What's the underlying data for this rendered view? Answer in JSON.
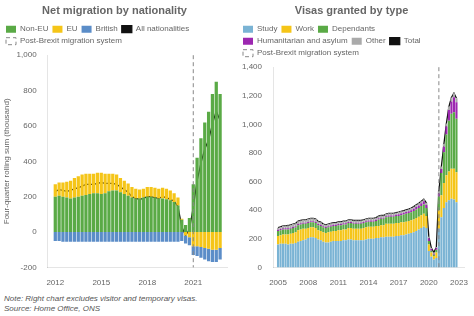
{
  "chart_data": [
    {
      "type": "bar",
      "stacked": true,
      "title": "Net migration by nationality",
      "ylabel": "Four-quarter rolling sum (thousand)",
      "x": [
        2012,
        2012.25,
        2012.5,
        2012.75,
        2013,
        2013.25,
        2013.5,
        2013.75,
        2014,
        2014.25,
        2014.5,
        2014.75,
        2015,
        2015.25,
        2015.5,
        2015.75,
        2016,
        2016.25,
        2016.5,
        2016.75,
        2017,
        2017.25,
        2017.5,
        2017.75,
        2018,
        2018.25,
        2018.5,
        2018.75,
        2019,
        2019.25,
        2019.5,
        2019.75,
        2020,
        2020.25,
        2020.5,
        2020.75,
        2021,
        2021.25,
        2021.5,
        2021.75,
        2022,
        2022.25,
        2022.5,
        2022.75
      ],
      "series": [
        {
          "name": "Non-EU",
          "color": "#5aaa46",
          "values": [
            200,
            205,
            200,
            195,
            190,
            195,
            200,
            205,
            210,
            215,
            220,
            220,
            215,
            220,
            230,
            235,
            235,
            225,
            215,
            205,
            195,
            190,
            190,
            195,
            200,
            200,
            195,
            190,
            190,
            185,
            180,
            170,
            150,
            70,
            40,
            80,
            270,
            420,
            530,
            620,
            680,
            780,
            850,
            780
          ]
        },
        {
          "name": "EU",
          "color": "#f5c518",
          "values": [
            70,
            75,
            80,
            90,
            100,
            110,
            115,
            120,
            120,
            115,
            110,
            115,
            120,
            110,
            100,
            95,
            90,
            80,
            75,
            70,
            60,
            55,
            50,
            50,
            55,
            55,
            55,
            55,
            60,
            60,
            55,
            50,
            45,
            5,
            -20,
            -30,
            -80,
            -80,
            -85,
            -90,
            -95,
            -100,
            -100,
            -90
          ]
        },
        {
          "name": "British",
          "color": "#5b8dc8",
          "values": [
            -50,
            -50,
            -55,
            -55,
            -55,
            -55,
            -55,
            -55,
            -55,
            -55,
            -55,
            -55,
            -55,
            -55,
            -55,
            -55,
            -55,
            -55,
            -55,
            -55,
            -55,
            -55,
            -55,
            -55,
            -55,
            -55,
            -55,
            -55,
            -55,
            -55,
            -55,
            -55,
            -55,
            -50,
            -45,
            -45,
            -50,
            -55,
            -60,
            -65,
            -70,
            -70,
            -70,
            -65
          ]
        },
        {
          "name": "All nationalities",
          "type": "line",
          "color": "#111111",
          "values": [
            230,
            240,
            235,
            230,
            235,
            245,
            250,
            260,
            270,
            270,
            270,
            275,
            280,
            275,
            275,
            275,
            270,
            255,
            240,
            225,
            200,
            190,
            185,
            190,
            200,
            200,
            195,
            190,
            200,
            195,
            185,
            175,
            145,
            30,
            -20,
            15,
            140,
            290,
            390,
            470,
            520,
            610,
            685,
            630
          ]
        }
      ],
      "annotations": [
        {
          "type": "vline",
          "x": 2021.0,
          "label": "Post-Brexit migration system",
          "color": "#888888",
          "line_style": "dashed"
        }
      ],
      "xlim": [
        2011.5,
        2023.2
      ],
      "xticks": [
        2012,
        2015,
        2018,
        2021
      ],
      "ylim": [
        -200,
        1000
      ],
      "yticks": [
        -200,
        0,
        200,
        400,
        600,
        800,
        {
          "value": 1000,
          "label": "1,000"
        }
      ],
      "grid": false,
      "legend": "upper left"
    },
    {
      "type": "bar",
      "stacked": true,
      "title": "Visas granted by type",
      "x": [
        2005,
        2005.25,
        2005.5,
        2005.75,
        2006,
        2006.25,
        2006.5,
        2006.75,
        2007,
        2007.25,
        2007.5,
        2007.75,
        2008,
        2008.25,
        2008.5,
        2008.75,
        2009,
        2009.25,
        2009.5,
        2009.75,
        2010,
        2010.25,
        2010.5,
        2010.75,
        2011,
        2011.25,
        2011.5,
        2011.75,
        2012,
        2012.25,
        2012.5,
        2012.75,
        2013,
        2013.25,
        2013.5,
        2013.75,
        2014,
        2014.25,
        2014.5,
        2014.75,
        2015,
        2015.25,
        2015.5,
        2015.75,
        2016,
        2016.25,
        2016.5,
        2016.75,
        2017,
        2017.25,
        2017.5,
        2017.75,
        2018,
        2018.25,
        2018.5,
        2018.75,
        2019,
        2019.25,
        2019.5,
        2019.75,
        2020,
        2020.25,
        2020.5,
        2020.75,
        2021,
        2021.25,
        2021.5,
        2021.75,
        2022,
        2022.25,
        2022.5,
        2022.75
      ],
      "series": [
        {
          "name": "Study",
          "color": "#7ab3d4",
          "values": [
            160,
            165,
            165,
            165,
            160,
            165,
            165,
            170,
            180,
            185,
            190,
            195,
            205,
            210,
            210,
            205,
            195,
            190,
            180,
            175,
            175,
            180,
            185,
            185,
            185,
            185,
            190,
            190,
            195,
            195,
            190,
            190,
            190,
            190,
            190,
            195,
            200,
            200,
            200,
            205,
            205,
            210,
            210,
            215,
            215,
            215,
            215,
            220,
            220,
            225,
            225,
            230,
            235,
            240,
            245,
            255,
            265,
            275,
            285,
            275,
            115,
            75,
            55,
            65,
            270,
            350,
            415,
            455,
            470,
            480,
            475,
            455
          ]
        },
        {
          "name": "Work",
          "color": "#f5c518",
          "values": [
            60,
            60,
            65,
            65,
            70,
            70,
            75,
            75,
            80,
            80,
            80,
            75,
            70,
            70,
            70,
            70,
            65,
            65,
            65,
            65,
            70,
            70,
            70,
            70,
            75,
            75,
            75,
            75,
            80,
            80,
            80,
            80,
            80,
            80,
            85,
            85,
            85,
            85,
            85,
            85,
            85,
            85,
            85,
            90,
            90,
            90,
            90,
            90,
            90,
            90,
            90,
            90,
            90,
            90,
            90,
            90,
            90,
            90,
            90,
            85,
            45,
            30,
            25,
            40,
            130,
            155,
            175,
            190,
            200,
            210,
            215,
            210
          ]
        },
        {
          "name": "Dependants",
          "color": "#5aaa46",
          "values": [
            35,
            35,
            35,
            35,
            35,
            35,
            35,
            35,
            35,
            35,
            35,
            35,
            35,
            35,
            35,
            35,
            35,
            35,
            35,
            35,
            35,
            35,
            35,
            35,
            35,
            35,
            35,
            35,
            35,
            35,
            35,
            35,
            35,
            35,
            35,
            35,
            35,
            35,
            35,
            35,
            45,
            45,
            45,
            45,
            50,
            50,
            50,
            50,
            50,
            50,
            55,
            55,
            55,
            55,
            60,
            60,
            60,
            65,
            65,
            55,
            25,
            12,
            8,
            18,
            95,
            155,
            215,
            285,
            355,
            385,
            395,
            375
          ]
        },
        {
          "name": "Humanitarian and asylum",
          "color": "#9c27b0",
          "values": [
            8,
            8,
            8,
            8,
            8,
            8,
            8,
            8,
            8,
            8,
            8,
            8,
            8,
            8,
            8,
            8,
            8,
            8,
            8,
            8,
            8,
            8,
            8,
            8,
            8,
            8,
            8,
            8,
            8,
            8,
            8,
            8,
            8,
            8,
            8,
            8,
            8,
            8,
            8,
            8,
            8,
            8,
            8,
            8,
            8,
            8,
            8,
            8,
            12,
            12,
            12,
            12,
            12,
            15,
            15,
            18,
            18,
            18,
            22,
            22,
            18,
            12,
            8,
            12,
            22,
            28,
            38,
            55,
            75,
            85,
            105,
            115
          ]
        },
        {
          "name": "Other",
          "color": "#aaaaaa",
          "values": [
            15,
            15,
            18,
            18,
            20,
            20,
            20,
            20,
            20,
            20,
            20,
            20,
            20,
            20,
            20,
            20,
            18,
            18,
            15,
            15,
            15,
            15,
            15,
            15,
            15,
            15,
            15,
            15,
            15,
            15,
            15,
            15,
            15,
            15,
            15,
            15,
            15,
            15,
            15,
            15,
            15,
            15,
            15,
            15,
            15,
            15,
            15,
            15,
            15,
            15,
            15,
            15,
            15,
            15,
            15,
            15,
            15,
            15,
            15,
            15,
            12,
            8,
            8,
            8,
            15,
            18,
            20,
            22,
            25,
            28,
            28,
            28
          ]
        },
        {
          "name": "Total",
          "type": "line",
          "color": "#111111",
          "values": [
            278,
            283,
            291,
            291,
            293,
            298,
            303,
            308,
            323,
            328,
            333,
            333,
            338,
            343,
            343,
            338,
            321,
            316,
            303,
            298,
            303,
            308,
            313,
            313,
            318,
            318,
            323,
            323,
            333,
            333,
            328,
            328,
            328,
            328,
            333,
            338,
            343,
            343,
            343,
            348,
            358,
            363,
            363,
            373,
            378,
            378,
            378,
            383,
            387,
            392,
            397,
            402,
            407,
            415,
            425,
            438,
            448,
            463,
            477,
            452,
            215,
            137,
            104,
            143,
            532,
            706,
            863,
            1007,
            1125,
            1188,
            1218,
            1183
          ]
        }
      ],
      "annotations": [
        {
          "type": "vline",
          "x": 2021.0,
          "label": "Post-Brexit migration system",
          "color": "#888888",
          "line_style": "dashed"
        }
      ],
      "xlim": [
        2004.5,
        2023.5
      ],
      "xticks": [
        2005,
        2008,
        2011,
        2014,
        2017,
        2020,
        2023
      ],
      "ylim": [
        0,
        1400
      ],
      "yticks": [
        0,
        200,
        400,
        600,
        800,
        {
          "value": 1000,
          "label": "1,000"
        },
        {
          "value": 1200,
          "label": "1,200"
        },
        {
          "value": 1400,
          "label": "1,400"
        }
      ],
      "grid": false,
      "legend": "upper left"
    }
  ],
  "note": "Note: Right chart excludes visitor and temporary visas.\nSource: Home Office, ONS"
}
